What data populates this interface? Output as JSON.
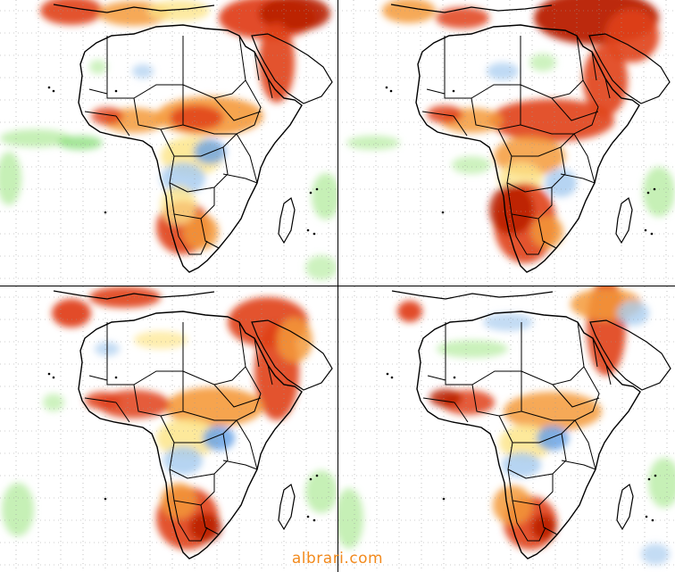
{
  "watermark": {
    "text": "albrari.com"
  },
  "colors": {
    "ocean": "#ffffff",
    "land": "#ffffff",
    "border": "#000000",
    "grid": "#9a9a9a",
    "dark_red": "#b81d00",
    "red": "#e0401a",
    "orange": "#f59a3a",
    "yellow": "#fde58a",
    "light_blue": "#a9cdf0",
    "blue": "#6aa3e6",
    "light_green": "#b8eca4",
    "green": "#7fdc6e",
    "watermark": "#f28a1d"
  },
  "panels": [
    {
      "id": "top-left",
      "name": "map-panel-top-left"
    },
    {
      "id": "top-right",
      "name": "map-panel-top-right"
    },
    {
      "id": "bottom-left",
      "name": "map-panel-bottom-left"
    },
    {
      "id": "bottom-right",
      "name": "map-panel-bottom-right"
    }
  ]
}
